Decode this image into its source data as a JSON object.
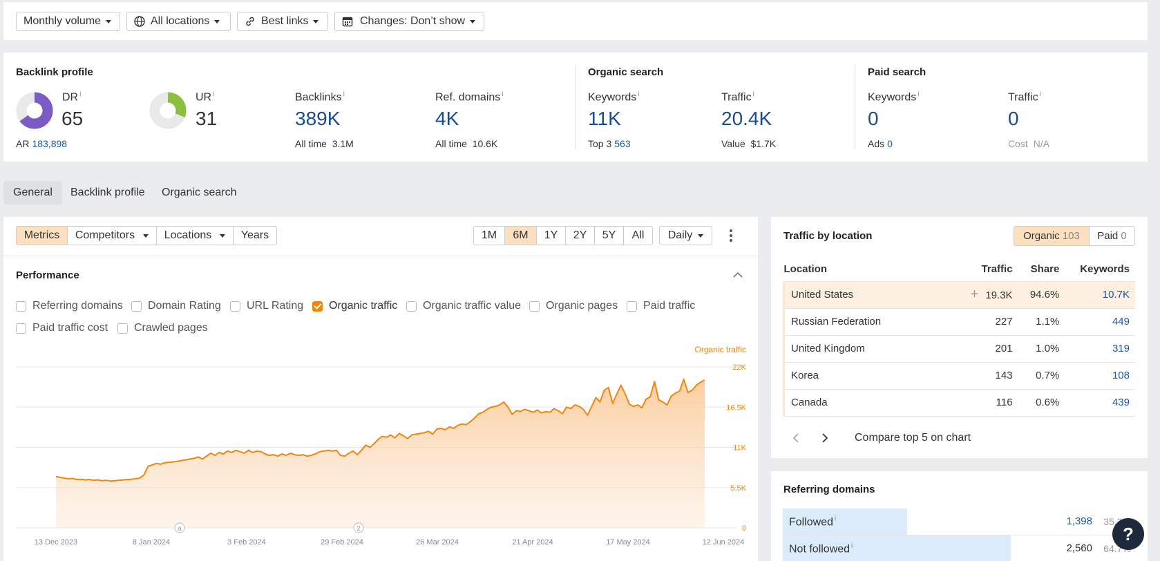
{
  "filters": {
    "volume": "Monthly volume",
    "locations": "All locations",
    "links": "Best links",
    "changes": "Changes: Don’t show"
  },
  "backlink_profile": {
    "title": "Backlink profile",
    "dr": {
      "label": "DR",
      "value": "65",
      "fraction": 0.65,
      "color": "#7b5cc4"
    },
    "ar": {
      "label": "AR",
      "value": "183,898"
    },
    "ur": {
      "label": "UR",
      "value": "31",
      "fraction": 0.31,
      "color": "#8cbe3f"
    },
    "backlinks": {
      "label": "Backlinks",
      "value": "389K",
      "sub_label": "All time",
      "sub_value": "3.1M"
    },
    "ref_domains": {
      "label": "Ref. domains",
      "value": "4K",
      "sub_label": "All time",
      "sub_value": "10.6K"
    }
  },
  "organic_search": {
    "title": "Organic search",
    "keywords": {
      "label": "Keywords",
      "value": "11K",
      "sub_label": "Top 3",
      "sub_value": "563"
    },
    "traffic": {
      "label": "Traffic",
      "value": "20.4K",
      "sub_label": "Value",
      "sub_value": "$1.7K"
    }
  },
  "paid_search": {
    "title": "Paid search",
    "keywords": {
      "label": "Keywords",
      "value": "0",
      "sub_label": "Ads",
      "sub_value": "0"
    },
    "traffic": {
      "label": "Traffic",
      "value": "0",
      "sub_label": "Cost",
      "sub_value": "N/A"
    }
  },
  "info_mark": "i",
  "tabs": [
    "General",
    "Backlink profile",
    "Organic search"
  ],
  "toolbar": {
    "metrics": "Metrics",
    "competitors": "Competitors",
    "locations": "Locations",
    "years": "Years",
    "ranges": [
      "1M",
      "6M",
      "1Y",
      "2Y",
      "5Y",
      "All"
    ],
    "active_range": "6M",
    "interval": "Daily"
  },
  "performance": {
    "title": "Performance",
    "checkboxes": [
      {
        "label": "Referring domains",
        "checked": false
      },
      {
        "label": "Domain Rating",
        "checked": false
      },
      {
        "label": "URL Rating",
        "checked": false
      },
      {
        "label": "Organic traffic",
        "checked": true
      },
      {
        "label": "Organic traffic value",
        "checked": false
      },
      {
        "label": "Organic pages",
        "checked": false
      },
      {
        "label": "Paid traffic",
        "checked": false
      },
      {
        "label": "Paid traffic cost",
        "checked": false
      },
      {
        "label": "Crawled pages",
        "checked": false
      }
    ]
  },
  "chart_data": {
    "type": "area",
    "series": [
      {
        "name": "Organic traffic",
        "color": "#f0850d"
      }
    ],
    "ylim": [
      0,
      22000
    ],
    "y_ticks": [
      {
        "v": 22000,
        "label": "22K"
      },
      {
        "v": 16500,
        "label": "16.5K"
      },
      {
        "v": 11000,
        "label": "11K"
      },
      {
        "v": 5500,
        "label": "5.5K"
      },
      {
        "v": 0,
        "label": "0"
      }
    ],
    "x_ticks": [
      "13 Dec 2023",
      "8 Jan 2024",
      "3 Feb 2024",
      "29 Feb 2024",
      "26 Mar 2024",
      "21 Apr 2024",
      "17 May 2024",
      "12 Jun 2024"
    ],
    "annotations": [
      "a",
      "2"
    ],
    "values": [
      7000,
      6900,
      6800,
      6700,
      6750,
      6600,
      6650,
      6550,
      6600,
      6500,
      6550,
      6450,
      6500,
      6400,
      6450,
      6500,
      6550,
      6600,
      6650,
      6700,
      6800,
      7200,
      8400,
      8600,
      8800,
      8700,
      8900,
      8950,
      9000,
      9100,
      9200,
      9300,
      9400,
      9500,
      9700,
      9400,
      9800,
      10200,
      9900,
      10300,
      10100,
      10500,
      10300,
      10600,
      10400,
      10200,
      10600,
      10300,
      10500,
      10400,
      10100,
      9900,
      10000,
      9800,
      10100,
      9900,
      10200,
      10000,
      9900,
      10000,
      9800,
      9900,
      10100,
      10400,
      10500,
      10600,
      10500,
      10600,
      9900,
      9800,
      10200,
      10500,
      10000,
      10600,
      11300,
      11000,
      11500,
      12100,
      12500,
      12400,
      12700,
      12300,
      12900,
      12600,
      12200,
      12700,
      12800,
      12900,
      13000,
      13200,
      12800,
      13500,
      13600,
      13400,
      13800,
      13600,
      14000,
      14200,
      14100,
      14500,
      15000,
      15600,
      15800,
      16200,
      16500,
      16600,
      16800,
      17200,
      16500,
      15500,
      16000,
      15900,
      16200,
      16000,
      15800,
      16100,
      15700,
      15900,
      15800,
      16300,
      16000,
      15600,
      16500,
      16300,
      16800,
      16600,
      16200,
      15400,
      16600,
      17800,
      17200,
      18800,
      19200,
      17000,
      18300,
      19500,
      18300,
      16900,
      16600,
      16800,
      16400,
      17600,
      17900,
      20000,
      17500,
      17200,
      16800,
      18000,
      18400,
      18700,
      20300,
      18500,
      18800,
      19500,
      19900,
      20200
    ]
  },
  "traffic_by_location": {
    "title": "Traffic by location",
    "organic_label": "Organic",
    "organic_count": "103",
    "paid_label": "Paid",
    "paid_count": "0",
    "columns": [
      "Location",
      "Traffic",
      "Share",
      "Keywords"
    ],
    "rows": [
      {
        "location": "United States",
        "traffic": "19.3K",
        "share": "94.6%",
        "keywords": "10.7K"
      },
      {
        "location": "Russian Federation",
        "traffic": "227",
        "share": "1.1%",
        "keywords": "449"
      },
      {
        "location": "United Kingdom",
        "traffic": "201",
        "share": "1.0%",
        "keywords": "319"
      },
      {
        "location": "Korea",
        "traffic": "143",
        "share": "0.7%",
        "keywords": "108"
      },
      {
        "location": "Canada",
        "traffic": "116",
        "share": "0.6%",
        "keywords": "439"
      }
    ],
    "compare_label": "Compare top 5 on chart"
  },
  "referring_domains": {
    "title": "Referring domains",
    "rows": [
      {
        "label": "Followed",
        "value": "1,398",
        "pct": "35.3%",
        "fraction": 0.353
      },
      {
        "label": "Not followed",
        "value": "2,560",
        "pct": "64.7%",
        "fraction": 0.647
      }
    ]
  },
  "help_label": "?"
}
